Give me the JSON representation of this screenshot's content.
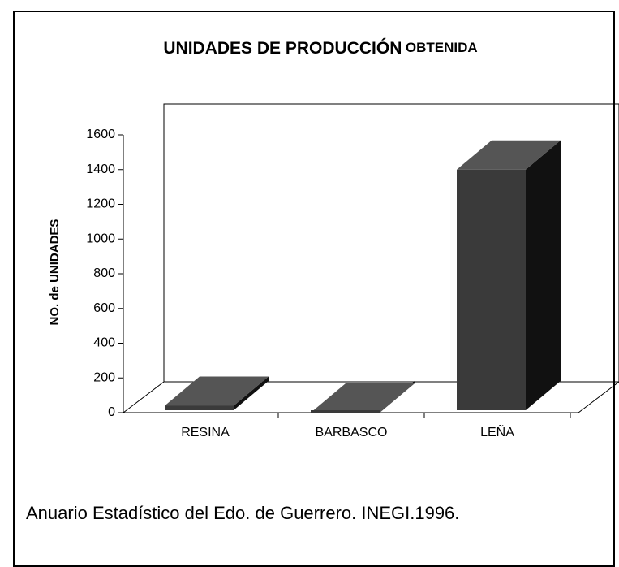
{
  "chart_data": {
    "type": "bar3d",
    "title": [
      "UNIDADES DE PRODUCCIÓN",
      "OBTENIDA"
    ],
    "y_label": "NO. de UNIDADES",
    "categories": [
      "RESINA",
      "BARBASCO",
      "LEÑA"
    ],
    "values": [
      40,
      0,
      1400
    ],
    "color": "#3a3a3a",
    "ylim": [
      0,
      1600
    ],
    "yticks": [
      0,
      200,
      400,
      600,
      800,
      1000,
      1200,
      1400,
      1600
    ],
    "source": "Anuario Estadístico del Edo. de Guerrero. INEGI.1996."
  }
}
